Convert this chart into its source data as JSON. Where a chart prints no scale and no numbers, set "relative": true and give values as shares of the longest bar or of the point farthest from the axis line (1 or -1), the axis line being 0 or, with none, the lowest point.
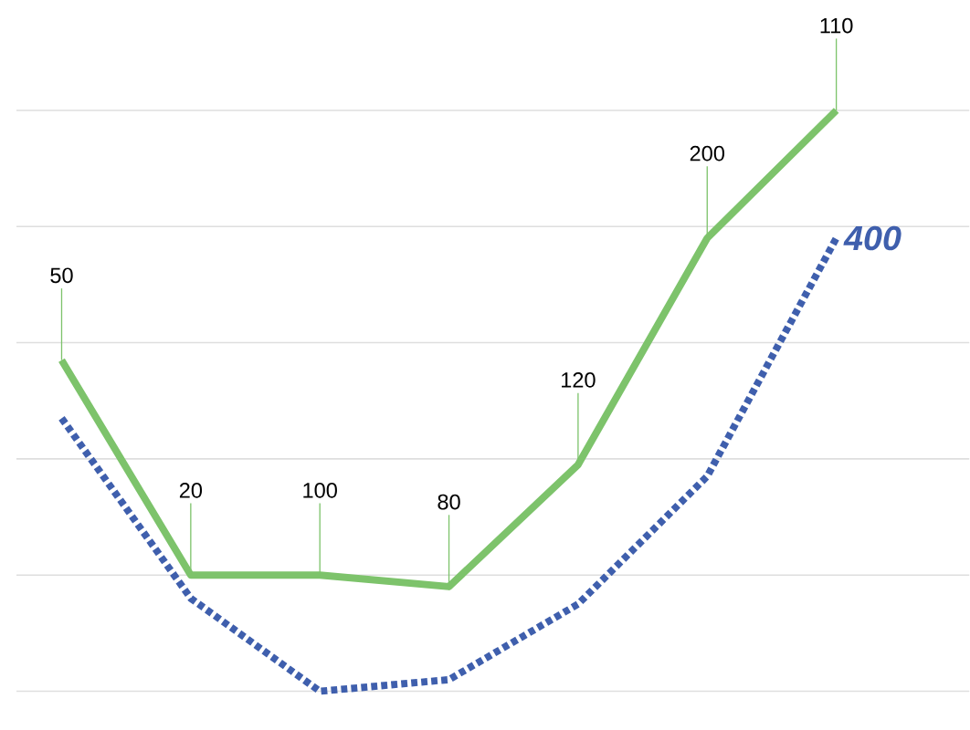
{
  "chart_data": {
    "type": "line",
    "relative": true,
    "grid": "y",
    "legend": false,
    "categories": [
      null,
      null,
      null,
      null,
      null,
      null,
      null
    ],
    "series": [
      {
        "color": "#7dc36b",
        "line_style": "solid",
        "values": [
          0.57,
          0.2,
          0.2,
          0.18,
          0.39,
          0.78,
          1
        ]
      },
      {
        "name": "400",
        "color": "#3f5fad",
        "line_style": "dotted",
        "values": [
          0.47,
          0.16,
          0,
          0.02,
          0.15,
          0.37,
          0.78
        ]
      }
    ],
    "annotations": [
      {
        "text": "50",
        "y": 0.57
      },
      {
        "text": "20",
        "y": 0.2
      },
      {
        "text": "100",
        "y": 0.2
      },
      {
        "text": "80",
        "y": 0.18
      },
      {
        "text": "120",
        "y": 0.39
      },
      {
        "text": "200",
        "y": 0.78
      },
      {
        "text": "110",
        "y": 1
      }
    ]
  }
}
